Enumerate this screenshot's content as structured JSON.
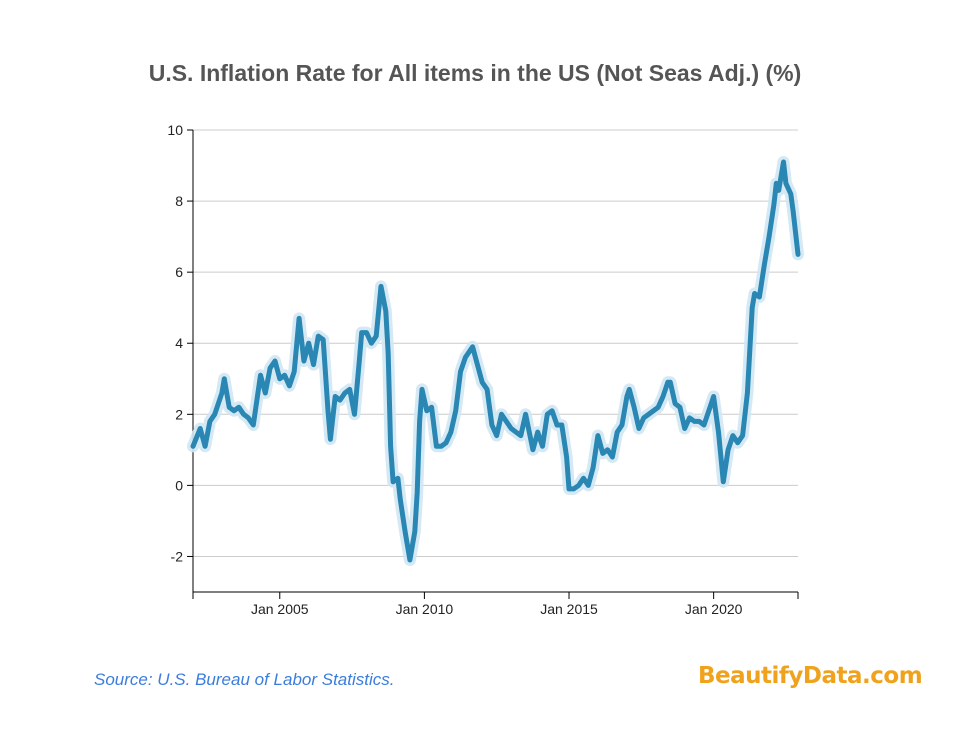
{
  "chart_data": {
    "type": "line",
    "title": "U.S. Inflation Rate for All items in the US (Not Seas Adj.) (%)",
    "xlabel": "",
    "ylabel": "",
    "ylim": [
      -3,
      10
    ],
    "y_ticks": [
      -2,
      0,
      2,
      4,
      6,
      8,
      10
    ],
    "y_tick_labels": [
      "-2",
      "0",
      "2",
      "4",
      "6",
      "8",
      "10"
    ],
    "x_range": [
      "2002-01",
      "2022-12"
    ],
    "x_ticks": [
      "2005-01",
      "2010-01",
      "2015-01",
      "2020-01"
    ],
    "x_tick_labels": [
      "Jan 2005",
      "Jan 2010",
      "Jan 2015",
      "Jan 2020"
    ],
    "grid": "horizontal",
    "colors": {
      "line": "#2a86b3",
      "glow": "#cfe7f3",
      "grid": "#cccccc",
      "axis": "#000000"
    },
    "series": [
      {
        "points": [
          [
            "2002-01",
            1.1
          ],
          [
            "2002-04",
            1.6
          ],
          [
            "2002-06",
            1.1
          ],
          [
            "2002-08",
            1.8
          ],
          [
            "2002-10",
            2.0
          ],
          [
            "2003-01",
            2.6
          ],
          [
            "2003-02",
            3.0
          ],
          [
            "2003-04",
            2.2
          ],
          [
            "2003-06",
            2.1
          ],
          [
            "2003-08",
            2.2
          ],
          [
            "2003-10",
            2.0
          ],
          [
            "2003-12",
            1.9
          ],
          [
            "2004-02",
            1.7
          ],
          [
            "2004-05",
            3.1
          ],
          [
            "2004-07",
            2.6
          ],
          [
            "2004-09",
            3.3
          ],
          [
            "2004-11",
            3.5
          ],
          [
            "2005-01",
            3.0
          ],
          [
            "2005-03",
            3.1
          ],
          [
            "2005-05",
            2.8
          ],
          [
            "2005-07",
            3.2
          ],
          [
            "2005-09",
            4.7
          ],
          [
            "2005-11",
            3.5
          ],
          [
            "2006-01",
            4.0
          ],
          [
            "2006-03",
            3.4
          ],
          [
            "2006-05",
            4.2
          ],
          [
            "2006-07",
            4.1
          ],
          [
            "2006-09",
            2.1
          ],
          [
            "2006-10",
            1.3
          ],
          [
            "2006-12",
            2.5
          ],
          [
            "2007-02",
            2.4
          ],
          [
            "2007-04",
            2.6
          ],
          [
            "2007-06",
            2.7
          ],
          [
            "2007-08",
            2.0
          ],
          [
            "2007-10",
            3.5
          ],
          [
            "2007-11",
            4.3
          ],
          [
            "2008-01",
            4.3
          ],
          [
            "2008-03",
            4.0
          ],
          [
            "2008-05",
            4.2
          ],
          [
            "2008-07",
            5.6
          ],
          [
            "2008-09",
            4.9
          ],
          [
            "2008-10",
            3.7
          ],
          [
            "2008-11",
            1.1
          ],
          [
            "2008-12",
            0.1
          ],
          [
            "2009-02",
            0.2
          ],
          [
            "2009-03",
            -0.4
          ],
          [
            "2009-05",
            -1.3
          ],
          [
            "2009-07",
            -2.1
          ],
          [
            "2009-09",
            -1.3
          ],
          [
            "2009-10",
            -0.2
          ],
          [
            "2009-11",
            1.8
          ],
          [
            "2009-12",
            2.7
          ],
          [
            "2010-02",
            2.1
          ],
          [
            "2010-04",
            2.2
          ],
          [
            "2010-06",
            1.1
          ],
          [
            "2010-08",
            1.1
          ],
          [
            "2010-10",
            1.2
          ],
          [
            "2010-12",
            1.5
          ],
          [
            "2011-02",
            2.1
          ],
          [
            "2011-04",
            3.2
          ],
          [
            "2011-06",
            3.6
          ],
          [
            "2011-09",
            3.9
          ],
          [
            "2011-11",
            3.4
          ],
          [
            "2012-01",
            2.9
          ],
          [
            "2012-03",
            2.7
          ],
          [
            "2012-05",
            1.7
          ],
          [
            "2012-07",
            1.4
          ],
          [
            "2012-09",
            2.0
          ],
          [
            "2012-11",
            1.8
          ],
          [
            "2013-01",
            1.6
          ],
          [
            "2013-03",
            1.5
          ],
          [
            "2013-05",
            1.4
          ],
          [
            "2013-07",
            2.0
          ],
          [
            "2013-10",
            1.0
          ],
          [
            "2013-12",
            1.5
          ],
          [
            "2014-02",
            1.1
          ],
          [
            "2014-04",
            2.0
          ],
          [
            "2014-06",
            2.1
          ],
          [
            "2014-08",
            1.7
          ],
          [
            "2014-10",
            1.7
          ],
          [
            "2014-12",
            0.8
          ],
          [
            "2015-01",
            -0.1
          ],
          [
            "2015-03",
            -0.1
          ],
          [
            "2015-05",
            0.0
          ],
          [
            "2015-07",
            0.2
          ],
          [
            "2015-09",
            0.0
          ],
          [
            "2015-11",
            0.5
          ],
          [
            "2016-01",
            1.4
          ],
          [
            "2016-03",
            0.9
          ],
          [
            "2016-05",
            1.0
          ],
          [
            "2016-07",
            0.8
          ],
          [
            "2016-09",
            1.5
          ],
          [
            "2016-11",
            1.7
          ],
          [
            "2017-01",
            2.5
          ],
          [
            "2017-02",
            2.7
          ],
          [
            "2017-04",
            2.2
          ],
          [
            "2017-06",
            1.6
          ],
          [
            "2017-08",
            1.9
          ],
          [
            "2017-10",
            2.0
          ],
          [
            "2017-12",
            2.1
          ],
          [
            "2018-02",
            2.2
          ],
          [
            "2018-04",
            2.5
          ],
          [
            "2018-06",
            2.9
          ],
          [
            "2018-07",
            2.9
          ],
          [
            "2018-09",
            2.3
          ],
          [
            "2018-11",
            2.2
          ],
          [
            "2019-01",
            1.6
          ],
          [
            "2019-03",
            1.9
          ],
          [
            "2019-05",
            1.8
          ],
          [
            "2019-07",
            1.8
          ],
          [
            "2019-09",
            1.7
          ],
          [
            "2019-11",
            2.1
          ],
          [
            "2020-01",
            2.5
          ],
          [
            "2020-03",
            1.5
          ],
          [
            "2020-05",
            0.1
          ],
          [
            "2020-07",
            1.0
          ],
          [
            "2020-09",
            1.4
          ],
          [
            "2020-11",
            1.2
          ],
          [
            "2021-01",
            1.4
          ],
          [
            "2021-03",
            2.6
          ],
          [
            "2021-05",
            5.0
          ],
          [
            "2021-06",
            5.4
          ],
          [
            "2021-08",
            5.3
          ],
          [
            "2021-10",
            6.2
          ],
          [
            "2021-12",
            7.0
          ],
          [
            "2022-02",
            7.9
          ],
          [
            "2022-03",
            8.5
          ],
          [
            "2022-04",
            8.3
          ],
          [
            "2022-06",
            9.1
          ],
          [
            "2022-07",
            8.5
          ],
          [
            "2022-09",
            8.2
          ],
          [
            "2022-10",
            7.7
          ],
          [
            "2022-11",
            7.1
          ],
          [
            "2022-12",
            6.5
          ]
        ]
      }
    ]
  },
  "footer": {
    "source": "Source: U.S. Bureau of Labor Statistics.",
    "brand": "BeautifyData.com"
  }
}
